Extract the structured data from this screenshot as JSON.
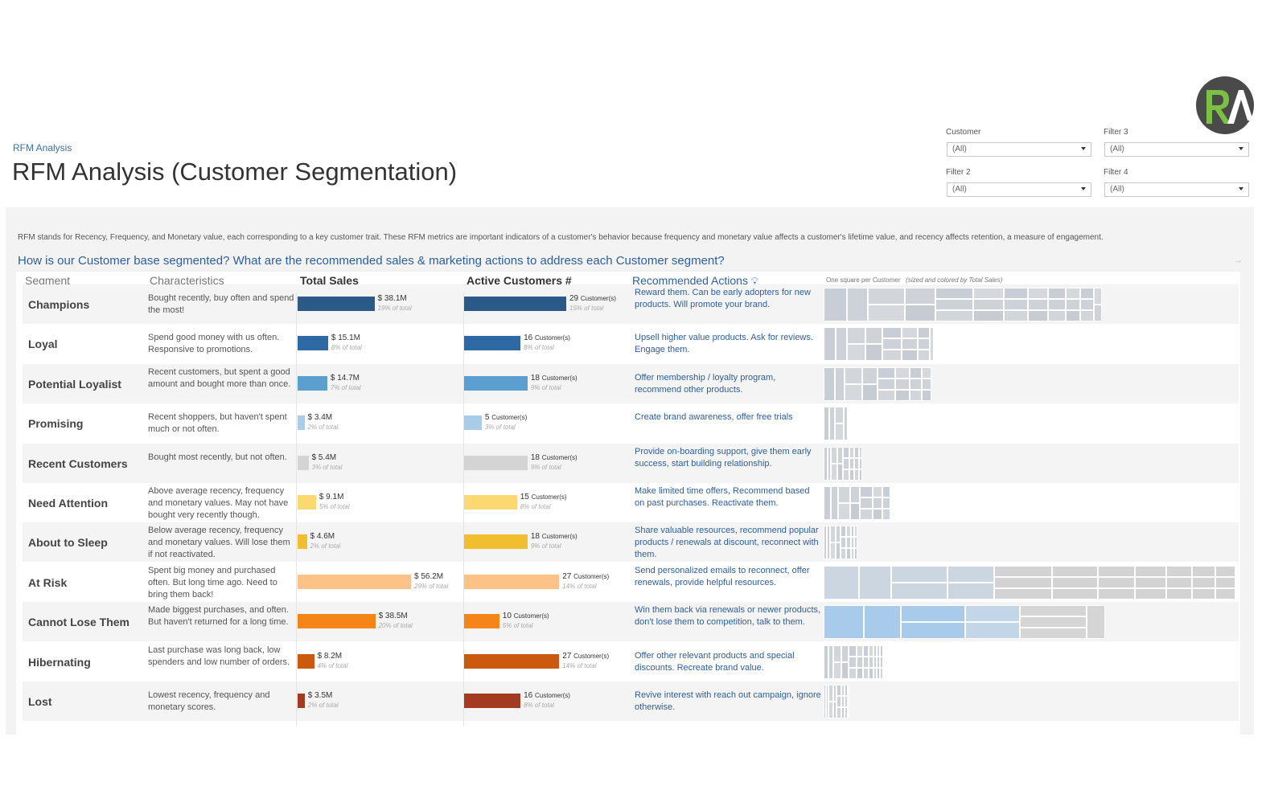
{
  "header": {
    "breadcrumb": "RFM Analysis",
    "title": "RFM Analysis (Customer Segmentation)"
  },
  "filters": [
    {
      "label": "Customer",
      "value": "(All)"
    },
    {
      "label": "Filter 3",
      "value": "(All)"
    },
    {
      "label": "Filter 2",
      "value": "(All)"
    },
    {
      "label": "Filter 4",
      "value": "(All)"
    }
  ],
  "intro": "RFM stands for Recency, Frequency, and Monetary value, each corresponding to a key customer trait. These RFM metrics are important indicators of a customer's behavior because frequency and monetary value affects a customer's lifetime value, and recency affects retention, a measure of engagement.",
  "question": "How is our Customer base segmented? What are the recommended sales & marketing actions to address each Customer segment?",
  "columns": {
    "segment": "Segment",
    "characteristics": "Characteristics",
    "total_sales": "Total Sales",
    "active_customers": "Active Customers #",
    "actions": "Recommended Actions",
    "treemap_note": "One square per Customer",
    "treemap_note_detail": "(sized and colored by Total Sales)"
  },
  "customer_suffix": "Customer(s)",
  "segments": [
    {
      "name": "Champions",
      "characteristics": "Bought recently, buy often and spend the most!",
      "sales_label": "$ 38.1M",
      "sales_value": 38.1,
      "sales_pct": "19% of total",
      "customers": 29,
      "cust_pct": "15% of total",
      "action": "Reward them. Can be early adopters for new products. Will promote your brand.",
      "color": "#2b5a89"
    },
    {
      "name": "Loyal",
      "characteristics": "Spend good money with us often. Responsive to promotions.",
      "sales_label": "$ 15.1M",
      "sales_value": 15.1,
      "sales_pct": "8% of total",
      "customers": 16,
      "cust_pct": "8% of total",
      "action": "Upsell higher value products. Ask for reviews. Engage them.",
      "color": "#2e69a3"
    },
    {
      "name": "Potential Loyalist",
      "characteristics": "Recent customers, but spent a good amount and bought more than once.",
      "sales_label": "$ 14.7M",
      "sales_value": 14.7,
      "sales_pct": "7% of total",
      "customers": 18,
      "cust_pct": "9% of total",
      "action": "Offer membership / loyalty program, recommend other products.",
      "color": "#5b9fd0"
    },
    {
      "name": "Promising",
      "characteristics": "Recent shoppers, but haven't spent much or not often.",
      "sales_label": "$ 3.4M",
      "sales_value": 3.4,
      "sales_pct": "2% of total",
      "customers": 5,
      "cust_pct": "3% of total",
      "action": "Create brand awareness, offer free trials",
      "color": "#a9cde9"
    },
    {
      "name": "Recent Customers",
      "characteristics": "Bought most recently, but not often.",
      "sales_label": "$ 5.4M",
      "sales_value": 5.4,
      "sales_pct": "3% of total",
      "customers": 18,
      "cust_pct": "9% of total",
      "action": "Provide on-boarding support, give them early success, start building relationship.",
      "color": "#d4d4d4"
    },
    {
      "name": "Need Attention",
      "characteristics": "Above average recency, frequency and monetary values. May not have bought very recently though.",
      "sales_label": "$ 9.1M",
      "sales_value": 9.1,
      "sales_pct": "5% of total",
      "customers": 15,
      "cust_pct": "8% of total",
      "action": "Make limited time offers, Recommend based on past purchases. Reactivate them.",
      "color": "#fbd870"
    },
    {
      "name": "About to Sleep",
      "characteristics": "Below average recency, frequency and monetary values. Will lose them if not reactivated.",
      "sales_label": "$ 4.6M",
      "sales_value": 4.6,
      "sales_pct": "2% of total",
      "customers": 18,
      "cust_pct": "9% of total",
      "action": "Share valuable resources, recommend popular products / renewals at discount, reconnect with them.",
      "color": "#f0be2e"
    },
    {
      "name": "At Risk",
      "characteristics": "Spent big money and purchased often. But long time ago. Need to bring them back!",
      "sales_label": "$ 56.2M",
      "sales_value": 56.2,
      "sales_pct": "29% of total",
      "customers": 27,
      "cust_pct": "14% of total",
      "action": "Send personalized emails to reconnect, offer renewals, provide helpful resources.",
      "color": "#fcc287"
    },
    {
      "name": "Cannot Lose Them",
      "characteristics": "Made biggest purchases, and often. But haven't returned for a long time.",
      "sales_label": "$ 38.5M",
      "sales_value": 38.5,
      "sales_pct": "20% of total",
      "customers": 10,
      "cust_pct": "5% of total",
      "action": "Win them back via renewals or newer products, don't lose them to competition, talk to them.",
      "color": "#f58518"
    },
    {
      "name": "Hibernating",
      "characteristics": "Last purchase was long back, low spenders and low number of orders.",
      "sales_label": "$ 8.2M",
      "sales_value": 8.2,
      "sales_pct": "4% of total",
      "customers": 27,
      "cust_pct": "14% of total",
      "action": "Offer other relevant products and special discounts. Recreate brand value.",
      "color": "#cc5a0e"
    },
    {
      "name": "Lost",
      "characteristics": "Lowest recency, frequency and monetary scores.",
      "sales_label": "$ 3.5M",
      "sales_value": 3.5,
      "sales_pct": "2% of total",
      "customers": 16,
      "cust_pct": "8% of total",
      "action": "Revive interest with reach out campaign, ignore otherwise.",
      "color": "#a33a22"
    }
  ],
  "treemap_widths": [
    346,
    137,
    134,
    30,
    48,
    83,
    42,
    512,
    350,
    74,
    31
  ]
}
